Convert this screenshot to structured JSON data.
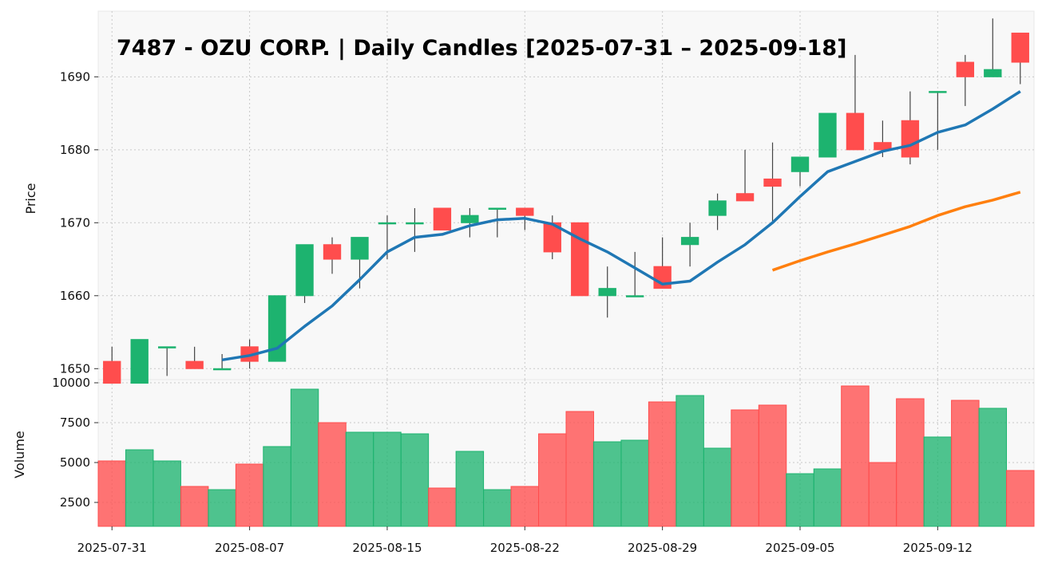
{
  "chart_data": {
    "type": "candlestick",
    "title": "7487 - OZU CORP. | Daily Candles [2025-07-31 – 2025-09-18]",
    "ylabel": "Price",
    "volume_label": "Volume",
    "price_ylim": [
      1648.5,
      1699
    ],
    "price_yticks": [
      1650,
      1660,
      1670,
      1680,
      1690
    ],
    "volume_ylim": [
      1000,
      10200
    ],
    "volume_yticks": [
      2500,
      5000,
      7500,
      10000
    ],
    "volume_ytick_labels": [
      "2500",
      "5000",
      "7500",
      "10000"
    ],
    "x_tick_labels": [
      "2025-07-31",
      "2025-08-07",
      "2025-08-15",
      "2025-08-22",
      "2025-08-29",
      "2025-09-05",
      "2025-09-12"
    ],
    "x_tick_indices": [
      0,
      5,
      10,
      15,
      20,
      25,
      30
    ],
    "colors": {
      "up": "#1db36f",
      "down": "#ff4d4d",
      "ma_short": "#1f77b4",
      "ma_long": "#ff7f0e",
      "wick": "#444444",
      "plot_bg": "#f8f8f8"
    },
    "candles": [
      {
        "date": "2025-07-31",
        "open": 1651,
        "high": 1653,
        "low": 1648,
        "close": 1648
      },
      {
        "date": "2025-08-01",
        "open": 1648,
        "high": 1654,
        "low": 1648,
        "close": 1654
      },
      {
        "date": "2025-08-04",
        "open": 1653,
        "high": 1653,
        "low": 1649,
        "close": 1653
      },
      {
        "date": "2025-08-05",
        "open": 1651,
        "high": 1653,
        "low": 1650,
        "close": 1650
      },
      {
        "date": "2025-08-06",
        "open": 1650,
        "high": 1652,
        "low": 1650,
        "close": 1650
      },
      {
        "date": "2025-08-07",
        "open": 1653,
        "high": 1654,
        "low": 1650,
        "close": 1651
      },
      {
        "date": "2025-08-08",
        "open": 1651,
        "high": 1660,
        "low": 1651,
        "close": 1660
      },
      {
        "date": "2025-08-12",
        "open": 1660,
        "high": 1667,
        "low": 1659,
        "close": 1667
      },
      {
        "date": "2025-08-13",
        "open": 1667,
        "high": 1668,
        "low": 1663,
        "close": 1665
      },
      {
        "date": "2025-08-14",
        "open": 1665,
        "high": 1668,
        "low": 1661,
        "close": 1668
      },
      {
        "date": "2025-08-15",
        "open": 1670,
        "high": 1671,
        "low": 1665,
        "close": 1670
      },
      {
        "date": "2025-08-18",
        "open": 1670,
        "high": 1672,
        "low": 1666,
        "close": 1670
      },
      {
        "date": "2025-08-19",
        "open": 1672,
        "high": 1672,
        "low": 1669,
        "close": 1669
      },
      {
        "date": "2025-08-20",
        "open": 1670,
        "high": 1672,
        "low": 1668,
        "close": 1671
      },
      {
        "date": "2025-08-21",
        "open": 1672,
        "high": 1672,
        "low": 1668,
        "close": 1672
      },
      {
        "date": "2025-08-22",
        "open": 1672,
        "high": 1672,
        "low": 1669,
        "close": 1671
      },
      {
        "date": "2025-08-25",
        "open": 1670,
        "high": 1671,
        "low": 1665,
        "close": 1666
      },
      {
        "date": "2025-08-26",
        "open": 1670,
        "high": 1670,
        "low": 1660,
        "close": 1660
      },
      {
        "date": "2025-08-27",
        "open": 1660,
        "high": 1664,
        "low": 1657,
        "close": 1661
      },
      {
        "date": "2025-08-28",
        "open": 1660,
        "high": 1666,
        "low": 1660,
        "close": 1660
      },
      {
        "date": "2025-08-29",
        "open": 1664,
        "high": 1668,
        "low": 1661,
        "close": 1661
      },
      {
        "date": "2025-09-01",
        "open": 1667,
        "high": 1670,
        "low": 1664,
        "close": 1668
      },
      {
        "date": "2025-09-02",
        "open": 1671,
        "high": 1674,
        "low": 1669,
        "close": 1673
      },
      {
        "date": "2025-09-03",
        "open": 1674,
        "high": 1680,
        "low": 1673,
        "close": 1673
      },
      {
        "date": "2025-09-04",
        "open": 1676,
        "high": 1681,
        "low": 1670,
        "close": 1675
      },
      {
        "date": "2025-09-05",
        "open": 1677,
        "high": 1679,
        "low": 1675,
        "close": 1679
      },
      {
        "date": "2025-09-08",
        "open": 1679,
        "high": 1685,
        "low": 1679,
        "close": 1685
      },
      {
        "date": "2025-09-09",
        "open": 1685,
        "high": 1693,
        "low": 1680,
        "close": 1680
      },
      {
        "date": "2025-09-10",
        "open": 1681,
        "high": 1684,
        "low": 1679,
        "close": 1680
      },
      {
        "date": "2025-09-11",
        "open": 1684,
        "high": 1688,
        "low": 1678,
        "close": 1679
      },
      {
        "date": "2025-09-12",
        "open": 1688,
        "high": 1688,
        "low": 1680,
        "close": 1688
      },
      {
        "date": "2025-09-16",
        "open": 1692,
        "high": 1693,
        "low": 1686,
        "close": 1690
      },
      {
        "date": "2025-09-17",
        "open": 1690,
        "high": 1698,
        "low": 1690,
        "close": 1691
      },
      {
        "date": "2025-09-18",
        "open": 1696,
        "high": 1696,
        "low": 1689,
        "close": 1692
      }
    ],
    "volume": [
      5100,
      5800,
      5100,
      3500,
      3300,
      4900,
      6000,
      9600,
      7500,
      6900,
      6900,
      6800,
      3400,
      5700,
      3300,
      3500,
      6800,
      8200,
      6300,
      6400,
      8800,
      9200,
      5900,
      8300,
      8600,
      4300,
      4600,
      9800,
      5000,
      9000,
      6600,
      8900,
      8400,
      4500
    ],
    "ma_short": [
      null,
      null,
      null,
      null,
      1651.2,
      1651.8,
      1652.8,
      1655.8,
      1658.6,
      1662.2,
      1666.0,
      1668.0,
      1668.4,
      1669.6,
      1670.4,
      1670.6,
      1669.8,
      1667.8,
      1666.0,
      1663.8,
      1661.6,
      1662.0,
      1664.6,
      1667.0,
      1670.0,
      1673.6,
      1677.0,
      1678.4,
      1679.8,
      1680.6,
      1682.4,
      1683.4,
      1685.6,
      1688.0
    ],
    "ma_long": [
      null,
      null,
      null,
      null,
      null,
      null,
      null,
      null,
      null,
      null,
      null,
      null,
      null,
      null,
      null,
      null,
      null,
      null,
      null,
      null,
      null,
      null,
      null,
      null,
      1663.5,
      1664.8,
      1666.0,
      1667.1,
      1668.3,
      1669.5,
      1671.0,
      1672.2,
      1673.1,
      1674.2
    ]
  }
}
